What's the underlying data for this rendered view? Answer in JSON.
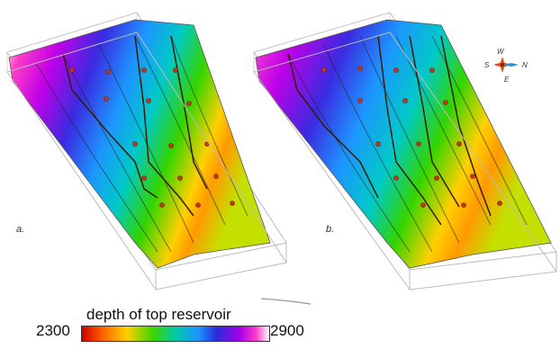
{
  "panels": [
    {
      "label": "a."
    },
    {
      "label": "b."
    }
  ],
  "compass": {
    "top": "W",
    "left": "S",
    "right": "N",
    "bottom": "E"
  },
  "colorbar": {
    "title": "depth of top reservoir",
    "min_label": "2300",
    "max_label": "2900",
    "colors": [
      "#d10000",
      "#ff6a00",
      "#ffd000",
      "#3cd400",
      "#00c9a8",
      "#1d95ff",
      "#2a2bd8",
      "#a000e8",
      "#ff3cc8",
      "#ffffff"
    ]
  }
}
